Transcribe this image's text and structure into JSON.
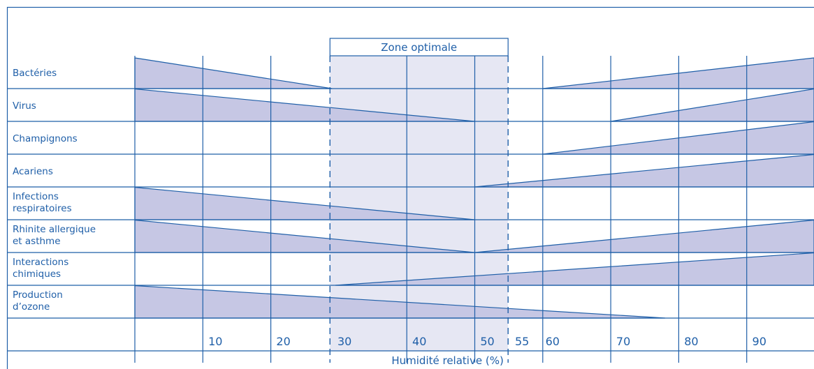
{
  "chart_data": {
    "type": "range-bar",
    "xlabel": "Humidité relative (%)",
    "xlim": [
      0,
      100
    ],
    "xticks": [
      10,
      20,
      30,
      40,
      50,
      55,
      60,
      70,
      80,
      90
    ],
    "optimal_zone": {
      "label": "Zone optimale",
      "range": [
        30,
        55
      ]
    },
    "rows": [
      {
        "label": [
          "Bactéries"
        ],
        "low": {
          "from": 0,
          "to": 30
        },
        "high": {
          "from": 60,
          "to": 100
        }
      },
      {
        "label": [
          "Virus"
        ],
        "low": {
          "from": 0,
          "to": 50
        },
        "high": {
          "from": 70,
          "to": 100
        }
      },
      {
        "label": [
          "Champignons"
        ],
        "high": {
          "from": 60,
          "to": 100
        }
      },
      {
        "label": [
          "Acariens"
        ],
        "high": {
          "from": 50,
          "to": 100
        }
      },
      {
        "label": [
          "Infections",
          "respiratoires"
        ],
        "low": {
          "from": 0,
          "to": 50
        }
      },
      {
        "label": [
          "Rhinite allergique",
          "et asthme"
        ],
        "low": {
          "from": 0,
          "to": 50
        },
        "high": {
          "from": 50,
          "to": 100
        }
      },
      {
        "label": [
          "Interactions",
          "chimiques"
        ],
        "high": {
          "from": 30,
          "to": 100
        }
      },
      {
        "label": [
          "Production",
          "d’ozone"
        ],
        "low": {
          "from": 0,
          "to": 78
        }
      }
    ],
    "colors": {
      "line": "#1f5fa8",
      "fill": "#c6c7e4",
      "zone": "#e6e7f3"
    }
  }
}
